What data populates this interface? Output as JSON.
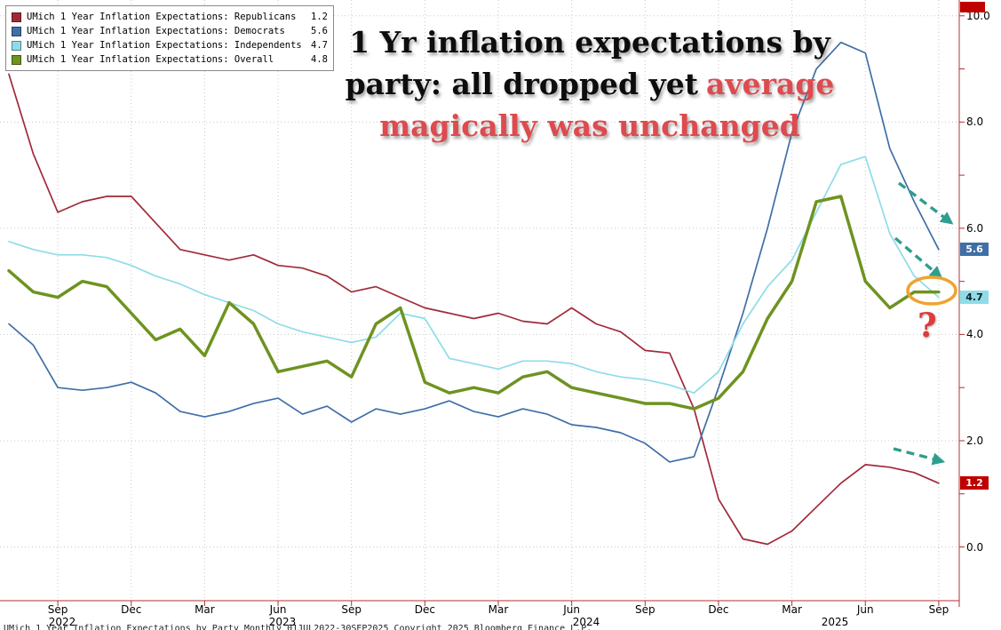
{
  "legend": {
    "items": [
      {
        "key": "republicans",
        "label": "UMich 1 Year Inflation Expectations: Republicans",
        "value": "1.2",
        "color": "#a12a38"
      },
      {
        "key": "democrats",
        "label": "UMich 1 Year Inflation Expectations: Democrats",
        "value": "5.6",
        "color": "#3f6fa6"
      },
      {
        "key": "independents",
        "label": "UMich 1 Year Inflation Expectations: Independents",
        "value": "4.7",
        "color": "#8fdce8"
      },
      {
        "key": "overall",
        "label": "UMich 1 Year Inflation Expectations: Overall",
        "value": "4.8",
        "color": "#6e9320"
      }
    ]
  },
  "annotations": {
    "headline": {
      "line1": "1 Yr inflation expectations by",
      "line2_black": "party: all dropped yet",
      "line2_red": "average",
      "line3": "magically was unchanged"
    },
    "question_mark": "?",
    "arrows": [
      "democrats-decline-arrow",
      "independents-decline-arrow",
      "republicans-decline-arrow"
    ],
    "ellipse": "overall-unchanged-ellipse"
  },
  "axis": {
    "y_labels": [
      {
        "label": "10.0",
        "v": 10
      },
      {
        "label": "8.0",
        "v": 8
      },
      {
        "label": "6.0",
        "v": 6
      },
      {
        "label": "4.0",
        "v": 4
      },
      {
        "label": "2.0",
        "v": 2
      },
      {
        "label": "0.0",
        "v": 0
      }
    ],
    "x_tick_labels": [
      "Sep",
      "Dec",
      "Mar",
      "Jun",
      "Sep",
      "Dec",
      "Mar",
      "Jun",
      "Sep",
      "Dec",
      "Mar",
      "Jun",
      "Sep"
    ],
    "years": [
      "2022",
      "2023",
      "2024",
      "2025"
    ]
  },
  "badges": [
    {
      "value": "5.6",
      "v": 5.6,
      "bg": "#3f6fa6",
      "fg": "#ffffff"
    },
    {
      "value": "4.7",
      "v": 4.7,
      "bg": "#8fdce8",
      "fg": "#102020"
    },
    {
      "value": "1.2",
      "v": 1.2,
      "bg": "#c00000",
      "fg": "#ffffff"
    }
  ],
  "footer": {
    "text": "UMich 1 Year Inflation Expectations by Party   Monthly 01JUL2022-30SEP2025   Copyright 2025 Bloomberg Finance L.P."
  },
  "colors": {
    "republicans": "#a12a38",
    "democrats": "#3f6fa6",
    "independents": "#8fdce8",
    "overall": "#6e9320",
    "badge_red": "#c00000",
    "annotation_red": "#de4a4e",
    "arrow_teal": "#2e9e8e",
    "ellipse_orange": "#efa32e",
    "grid": "#c9c9c9",
    "axis_red": "#b03030"
  },
  "chart_data": {
    "type": "line",
    "title": "1 Yr inflation expectations by party: all dropped yet average magically was unchanged",
    "xlabel": "",
    "ylabel": "",
    "ylim": [
      -1.0,
      10.3
    ],
    "y_ticks": [
      0,
      2,
      4,
      6,
      8,
      10
    ],
    "grid": "dotted",
    "legend_position": "top-left",
    "x_monthly": [
      "2022-07",
      "2022-08",
      "2022-09",
      "2022-10",
      "2022-11",
      "2022-12",
      "2023-01",
      "2023-02",
      "2023-03",
      "2023-04",
      "2023-05",
      "2023-06",
      "2023-07",
      "2023-08",
      "2023-09",
      "2023-10",
      "2023-11",
      "2023-12",
      "2024-01",
      "2024-02",
      "2024-03",
      "2024-04",
      "2024-05",
      "2024-06",
      "2024-07",
      "2024-08",
      "2024-09",
      "2024-10",
      "2024-11",
      "2024-12",
      "2025-01",
      "2025-02",
      "2025-03",
      "2025-04",
      "2025-05",
      "2025-06",
      "2025-07",
      "2025-08",
      "2025-09"
    ],
    "series": [
      {
        "key": "republicans",
        "name": "UMich 1 Year Inflation Expectations: Republicans",
        "color": "#a12a38",
        "stroke_width": 1.7,
        "last": 1.2,
        "values": [
          8.9,
          7.4,
          6.3,
          6.5,
          6.6,
          6.6,
          6.1,
          5.6,
          5.5,
          5.4,
          5.5,
          5.3,
          5.25,
          5.1,
          4.8,
          4.9,
          4.7,
          4.5,
          4.4,
          4.3,
          4.4,
          4.25,
          4.2,
          4.5,
          4.2,
          4.05,
          3.7,
          3.65,
          2.6,
          0.9,
          0.15,
          0.05,
          0.3,
          0.75,
          1.2,
          1.55,
          1.5,
          1.4,
          1.2
        ]
      },
      {
        "key": "democrats",
        "name": "UMich 1 Year Inflation Expectations: Democrats",
        "color": "#3f6fa6",
        "stroke_width": 1.7,
        "last": 5.6,
        "values": [
          4.2,
          3.8,
          3.0,
          2.95,
          3.0,
          3.1,
          2.9,
          2.55,
          2.45,
          2.55,
          2.7,
          2.8,
          2.5,
          2.65,
          2.35,
          2.6,
          2.5,
          2.6,
          2.75,
          2.55,
          2.45,
          2.6,
          2.5,
          2.3,
          2.25,
          2.15,
          1.95,
          1.6,
          1.7,
          3.0,
          4.4,
          6.0,
          7.8,
          9.0,
          9.5,
          9.3,
          7.5,
          6.5,
          5.6
        ]
      },
      {
        "key": "independents",
        "name": "UMich 1 Year Inflation Expectations: Independents",
        "color": "#8fdce8",
        "stroke_width": 1.7,
        "last": 4.7,
        "values": [
          5.75,
          5.6,
          5.5,
          5.5,
          5.45,
          5.3,
          5.1,
          4.95,
          4.75,
          4.6,
          4.45,
          4.2,
          4.05,
          3.95,
          3.85,
          3.95,
          4.4,
          4.3,
          3.55,
          3.45,
          3.35,
          3.5,
          3.5,
          3.45,
          3.3,
          3.2,
          3.15,
          3.05,
          2.9,
          3.3,
          4.2,
          4.9,
          5.4,
          6.3,
          7.2,
          7.35,
          5.9,
          5.1,
          4.7
        ]
      },
      {
        "key": "overall",
        "name": "UMich 1 Year Inflation Expectations: Overall",
        "color": "#6e9320",
        "stroke_width": 3.5,
        "last": 4.8,
        "values": [
          5.2,
          4.8,
          4.7,
          5.0,
          4.9,
          4.4,
          3.9,
          4.1,
          3.6,
          4.6,
          4.2,
          3.3,
          3.4,
          3.5,
          3.2,
          4.2,
          4.5,
          3.1,
          2.9,
          3.0,
          2.9,
          3.2,
          3.3,
          3.0,
          2.9,
          2.8,
          2.7,
          2.7,
          2.6,
          2.8,
          3.3,
          4.3,
          5.0,
          6.5,
          6.6,
          5.0,
          4.5,
          4.8,
          4.8
        ]
      }
    ]
  }
}
